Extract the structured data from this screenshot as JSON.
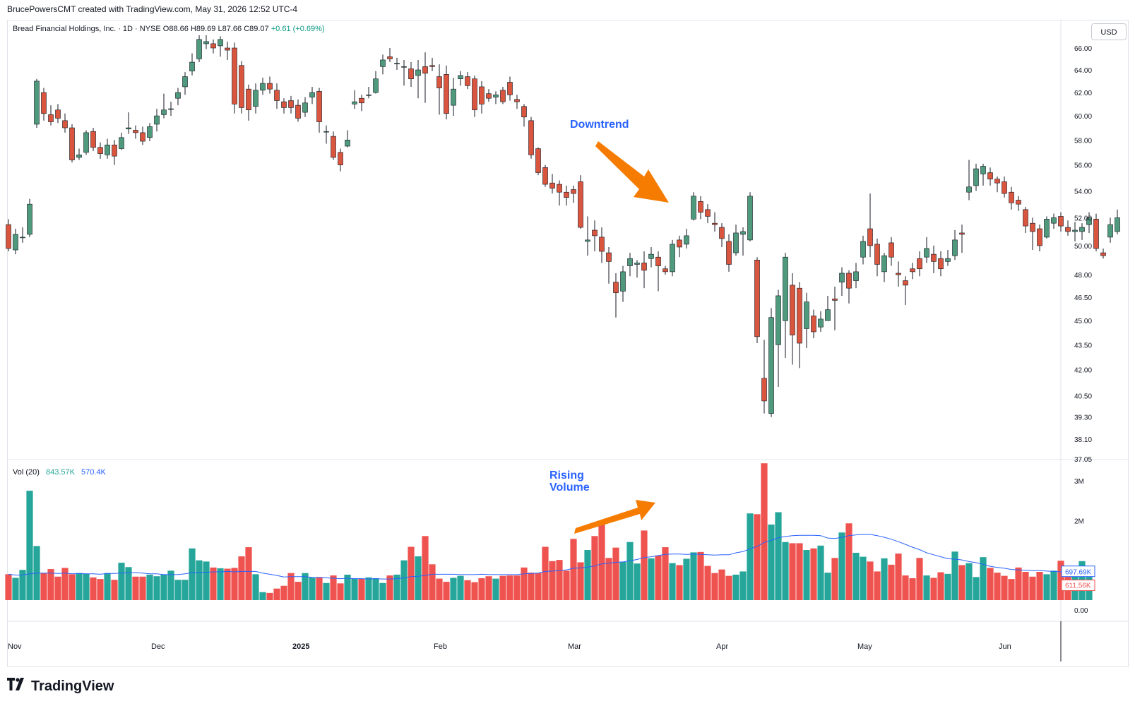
{
  "header": {
    "credit": "BrucePowersCMT created with TradingView.com, May 31, 2026 12:52 UTC-4",
    "currency": "USD"
  },
  "legend": {
    "symbol": "Bread Financial Holdings, Inc. · 1D · NYSE",
    "open": "O88.66",
    "high": "H89.69",
    "low": "L87.66",
    "close": "C89.07",
    "change": "+0.61 (+0.69%)"
  },
  "volume_legend": {
    "label": "Vol (20)",
    "value1": "843.57K",
    "value2": "570.4K"
  },
  "logo": {
    "text": "TradingView"
  },
  "colors": {
    "up": "#4f9a7c",
    "down": "#d9553e",
    "vol_up": "#26a69a",
    "vol_down": "#ef5350",
    "ma": "#2962ff",
    "annotation": "#f57c00",
    "annotation_text": "#2962ff"
  },
  "chart_data": {
    "type": "candlestick",
    "title": "",
    "price_ticks": [
      "66.00",
      "64.00",
      "62.00",
      "60.00",
      "58.00",
      "56.00",
      "54.00",
      "52.00",
      "50.00",
      "48.00",
      "46.50",
      "45.00",
      "43.50",
      "42.00",
      "40.50",
      "39.30",
      "38.10",
      "37.05"
    ],
    "price_tick_values": [
      66,
      64,
      62,
      60,
      58,
      56,
      54,
      52,
      50,
      48,
      46.5,
      45,
      43.5,
      42,
      40.5,
      39.3,
      38.1,
      37.05
    ],
    "ylim": [
      37.05,
      67.5
    ],
    "log_scale": true,
    "volume_ticks": [
      "3M",
      "2M",
      "0.00"
    ],
    "volume_tick_values": [
      3000000,
      2000000,
      0
    ],
    "volume_labels": {
      "ma": "697.69K",
      "last": "611.56K"
    },
    "volume_label_values": {
      "ma": 697690,
      "last": 611560
    },
    "x_labels": [
      "Nov",
      "Dec",
      "2025",
      "Feb",
      "Mar",
      "Apr",
      "May",
      "Jun"
    ],
    "x_label_index": [
      0,
      21,
      41,
      61,
      80,
      101,
      121,
      141
    ],
    "annotations": [
      "Downtrend",
      "Rising Volume"
    ],
    "candles": [
      [
        51.5,
        49.8,
        51.9,
        49.6
      ],
      [
        49.7,
        50.8,
        51.2,
        49.4
      ],
      [
        50.6,
        50.6,
        51.3,
        50.2
      ],
      [
        50.8,
        53.0,
        53.4,
        50.6
      ],
      [
        59.3,
        63.0,
        63.2,
        59.0
      ],
      [
        62.0,
        60.2,
        62.4,
        59.6
      ],
      [
        60.1,
        59.5,
        60.9,
        59.2
      ],
      [
        60.5,
        59.8,
        61.0,
        59.4
      ],
      [
        59.6,
        59.0,
        60.2,
        58.6
      ],
      [
        59.0,
        56.4,
        59.3,
        56.2
      ],
      [
        56.6,
        56.8,
        57.3,
        56.4
      ],
      [
        57.0,
        58.6,
        58.8,
        56.8
      ],
      [
        58.7,
        57.4,
        59.0,
        57.1
      ],
      [
        57.4,
        56.9,
        57.8,
        56.5
      ],
      [
        56.8,
        57.6,
        58.1,
        56.5
      ],
      [
        57.6,
        56.7,
        58.0,
        56.0
      ],
      [
        57.3,
        58.2,
        58.6,
        57.2
      ],
      [
        58.9,
        59.0,
        60.3,
        58.5
      ],
      [
        58.8,
        58.6,
        59.2,
        58.1
      ],
      [
        58.6,
        57.9,
        59.1,
        57.6
      ],
      [
        58.2,
        59.1,
        59.4,
        57.9
      ],
      [
        59.3,
        60.0,
        60.6,
        58.7
      ],
      [
        60.1,
        60.5,
        61.9,
        59.8
      ],
      [
        60.6,
        60.6,
        61.2,
        60.0
      ],
      [
        61.5,
        62.0,
        62.4,
        60.9
      ],
      [
        62.5,
        63.4,
        63.8,
        61.8
      ],
      [
        63.9,
        64.7,
        65.5,
        63.5
      ],
      [
        65.0,
        66.8,
        67.2,
        64.7
      ],
      [
        66.4,
        66.6,
        67.2,
        65.9
      ],
      [
        66.4,
        66.0,
        66.8,
        65.5
      ],
      [
        66.2,
        66.8,
        67.1,
        65.2
      ],
      [
        66.0,
        65.8,
        66.6,
        64.9
      ],
      [
        66.0,
        61.0,
        66.5,
        60.2
      ],
      [
        64.4,
        60.7,
        64.8,
        60.2
      ],
      [
        62.3,
        60.5,
        62.7,
        59.6
      ],
      [
        60.8,
        62.2,
        62.8,
        60.2
      ],
      [
        62.2,
        62.8,
        63.3,
        61.8
      ],
      [
        62.8,
        62.3,
        63.4,
        61.9
      ],
      [
        62.2,
        61.3,
        62.8,
        60.6
      ],
      [
        61.2,
        60.7,
        61.5,
        60.2
      ],
      [
        61.3,
        60.7,
        61.7,
        60.2
      ],
      [
        60.9,
        59.8,
        61.4,
        59.5
      ],
      [
        60.3,
        61.1,
        61.6,
        59.9
      ],
      [
        61.6,
        62.0,
        62.5,
        61.0
      ],
      [
        62.1,
        59.5,
        62.4,
        58.6
      ],
      [
        58.7,
        58.7,
        59.2,
        57.7
      ],
      [
        58.3,
        56.6,
        58.7,
        56.4
      ],
      [
        57.0,
        56.0,
        57.3,
        55.5
      ],
      [
        57.5,
        58.0,
        58.8,
        57.4
      ],
      [
        61.0,
        61.2,
        62.2,
        60.6
      ],
      [
        61.5,
        61.1,
        61.8,
        60.4
      ],
      [
        61.8,
        61.8,
        62.5,
        61.5
      ],
      [
        62.0,
        63.2,
        63.9,
        61.9
      ],
      [
        64.3,
        64.9,
        65.4,
        63.6
      ],
      [
        65.2,
        65.0,
        66.0,
        64.7
      ],
      [
        64.6,
        64.6,
        65.1,
        64.0
      ],
      [
        64.3,
        64.3,
        64.9,
        62.6
      ],
      [
        64.1,
        63.2,
        64.7,
        62.5
      ],
      [
        63.5,
        64.0,
        64.9,
        61.5
      ],
      [
        64.3,
        63.7,
        65.6,
        61.1
      ],
      [
        64.4,
        64.3,
        65.1,
        63.9
      ],
      [
        63.4,
        62.4,
        64.5,
        60.1
      ],
      [
        63.6,
        60.2,
        64.4,
        59.7
      ],
      [
        60.9,
        62.3,
        63.3,
        60.0
      ],
      [
        63.2,
        63.5,
        63.9,
        62.6
      ],
      [
        63.4,
        62.6,
        63.8,
        62.3
      ],
      [
        63.2,
        60.5,
        63.5,
        59.9
      ],
      [
        62.5,
        61.0,
        63.0,
        60.2
      ],
      [
        61.9,
        61.5,
        62.3,
        61.2
      ],
      [
        61.6,
        61.8,
        62.1,
        61.0
      ],
      [
        62.2,
        61.2,
        62.5,
        61.0
      ],
      [
        62.9,
        61.8,
        63.4,
        61.3
      ],
      [
        61.4,
        61.2,
        61.8,
        60.6
      ],
      [
        60.8,
        59.9,
        61.0,
        59.1
      ],
      [
        59.6,
        56.8,
        59.9,
        56.5
      ],
      [
        57.3,
        55.4,
        57.4,
        55.2
      ],
      [
        55.8,
        54.5,
        56.0,
        54.3
      ],
      [
        54.6,
        54.2,
        55.3,
        53.8
      ],
      [
        54.5,
        53.9,
        54.8,
        52.9
      ],
      [
        53.9,
        53.5,
        54.4,
        52.9
      ],
      [
        54.1,
        53.8,
        54.4,
        53.1
      ],
      [
        54.7,
        51.3,
        55.2,
        51.2
      ],
      [
        50.3,
        50.4,
        52.1,
        49.3
      ],
      [
        51.1,
        50.7,
        51.8,
        49.6
      ],
      [
        50.6,
        49.6,
        51.3,
        48.8
      ],
      [
        49.5,
        48.9,
        49.9,
        47.4
      ],
      [
        47.5,
        46.8,
        48.1,
        45.2
      ],
      [
        46.9,
        48.2,
        48.6,
        46.2
      ],
      [
        48.6,
        49.1,
        49.5,
        47.9
      ],
      [
        48.7,
        48.8,
        49.0,
        47.8
      ],
      [
        48.8,
        48.3,
        49.6,
        47.1
      ],
      [
        49.1,
        49.4,
        49.9,
        48.5
      ],
      [
        49.2,
        48.6,
        49.6,
        46.9
      ],
      [
        48.4,
        48.2,
        48.6,
        48.0
      ],
      [
        48.2,
        50.1,
        50.4,
        47.9
      ],
      [
        50.4,
        49.9,
        50.7,
        49.2
      ],
      [
        50.1,
        50.7,
        51.2,
        49.8
      ],
      [
        51.9,
        53.6,
        53.9,
        51.8
      ],
      [
        53.2,
        52.4,
        53.6,
        51.9
      ],
      [
        52.6,
        52.1,
        53.0,
        51.6
      ],
      [
        51.6,
        51.5,
        52.4,
        51.0
      ],
      [
        51.3,
        50.5,
        51.6,
        49.9
      ],
      [
        50.3,
        48.7,
        50.8,
        48.2
      ],
      [
        49.5,
        50.9,
        51.5,
        49.3
      ],
      [
        50.8,
        51.0,
        51.3,
        49.3
      ],
      [
        50.4,
        53.6,
        53.9,
        50.3
      ],
      [
        49.0,
        44.0,
        49.2,
        43.6
      ],
      [
        41.5,
        40.2,
        43.8,
        39.5
      ],
      [
        39.5,
        45.2,
        45.8,
        39.3
      ],
      [
        43.5,
        46.6,
        47.0,
        41.0
      ],
      [
        45.0,
        49.2,
        49.5,
        42.7
      ],
      [
        47.3,
        44.1,
        48.1,
        42.3
      ],
      [
        47.1,
        43.6,
        47.5,
        42.1
      ],
      [
        44.5,
        46.2,
        46.8,
        43.3
      ],
      [
        45.3,
        44.3,
        45.7,
        43.9
      ],
      [
        44.6,
        45.1,
        45.6,
        44.3
      ],
      [
        45.0,
        45.7,
        46.6,
        45.0
      ],
      [
        46.4,
        46.3,
        47.2,
        44.4
      ],
      [
        47.5,
        48.1,
        48.5,
        46.6
      ],
      [
        48.1,
        47.1,
        48.3,
        46.1
      ],
      [
        47.6,
        48.2,
        48.8,
        47.1
      ],
      [
        49.2,
        50.3,
        50.7,
        48.7
      ],
      [
        51.2,
        50.0,
        53.8,
        49.2
      ],
      [
        50.1,
        48.7,
        50.5,
        47.9
      ],
      [
        48.2,
        49.3,
        49.5,
        47.5
      ],
      [
        50.2,
        49.2,
        50.6,
        48.6
      ],
      [
        48.1,
        48.0,
        48.9,
        47.2
      ],
      [
        47.6,
        47.3,
        47.9,
        46.0
      ],
      [
        48.4,
        48.2,
        48.8,
        47.7
      ],
      [
        49.1,
        48.4,
        49.6,
        47.9
      ],
      [
        49.2,
        49.8,
        50.6,
        48.8
      ],
      [
        49.4,
        48.9,
        50.0,
        48.1
      ],
      [
        49.1,
        48.4,
        49.6,
        47.9
      ],
      [
        48.9,
        49.1,
        49.7,
        48.6
      ],
      [
        49.3,
        50.4,
        51.1,
        49.0
      ],
      [
        50.9,
        50.8,
        51.5,
        49.5
      ],
      [
        53.9,
        54.3,
        56.4,
        53.3
      ],
      [
        54.4,
        55.7,
        56.1,
        54.0
      ],
      [
        55.3,
        55.9,
        56.1,
        54.4
      ],
      [
        55.4,
        54.9,
        55.8,
        54.4
      ],
      [
        54.9,
        54.6,
        55.1,
        53.9
      ],
      [
        54.7,
        53.8,
        55.1,
        53.5
      ],
      [
        53.9,
        53.1,
        54.3,
        52.6
      ],
      [
        53.3,
        53.0,
        53.6,
        52.5
      ],
      [
        52.6,
        51.4,
        52.8,
        50.9
      ],
      [
        51.6,
        51.0,
        52.0,
        49.7
      ],
      [
        51.2,
        50.0,
        51.5,
        49.6
      ],
      [
        50.6,
        51.9,
        52.1,
        50.5
      ],
      [
        51.6,
        52.0,
        52.3,
        51.2
      ],
      [
        52.1,
        51.4,
        52.4,
        51.0
      ],
      [
        51.3,
        51.0,
        51.8,
        50.7
      ],
      [
        51.0,
        51.1,
        51.7,
        50.3
      ],
      [
        51.0,
        51.3,
        51.6,
        50.4
      ],
      [
        51.5,
        52.0,
        52.4,
        50.9
      ],
      [
        51.9,
        49.8,
        52.3,
        49.6
      ],
      [
        49.5,
        49.3,
        49.8,
        49.1
      ],
      [
        50.6,
        51.5,
        52.0,
        50.2
      ],
      [
        51.0,
        52.0,
        52.6,
        50.8
      ]
    ],
    "volume": [
      650,
      560,
      760,
      2750,
      1360,
      680,
      780,
      590,
      810,
      650,
      680,
      660,
      570,
      530,
      680,
      510,
      940,
      830,
      590,
      590,
      640,
      600,
      640,
      740,
      510,
      510,
      1300,
      1000,
      970,
      820,
      800,
      790,
      810,
      1100,
      1330,
      650,
      200,
      180,
      290,
      360,
      680,
      460,
      680,
      570,
      580,
      430,
      620,
      420,
      640,
      540,
      540,
      570,
      550,
      430,
      620,
      640,
      1000,
      1340,
      1100,
      1610,
      900,
      540,
      460,
      560,
      610,
      500,
      450,
      550,
      600,
      540,
      610,
      620,
      620,
      820,
      690,
      680,
      1340,
      980,
      1010,
      740,
      1540,
      950,
      1260,
      1610,
      1940,
      1060,
      1320,
      960,
      1460,
      920,
      1750,
      1050,
      1120,
      1330,
      930,
      880,
      1040,
      1200,
      1210,
      860,
      680,
      770,
      610,
      640,
      720,
      2180,
      2160,
      3440,
      1900,
      2210,
      1460,
      1430,
      1430,
      1260,
      1300,
      1370,
      690,
      1060,
      1700,
      1930,
      1190,
      1090,
      970,
      720,
      1050,
      890,
      1170,
      620,
      550,
      1060,
      620,
      560,
      700,
      660,
      1220,
      880,
      930,
      580,
      1080,
      810,
      690,
      610,
      530,
      820,
      710,
      590,
      710,
      650,
      740,
      990,
      680,
      730,
      980,
      610
    ],
    "volume_ma": [
      650,
      630,
      630,
      660,
      680,
      680,
      680,
      670,
      680,
      660,
      670,
      660,
      660,
      650,
      670,
      670,
      680,
      690,
      690,
      680,
      660,
      660,
      640,
      640,
      640,
      660,
      690,
      700,
      700,
      710,
      710,
      720,
      710,
      720,
      720,
      720,
      680,
      650,
      620,
      580,
      590,
      590,
      590,
      570,
      560,
      560,
      550,
      540,
      550,
      540,
      540,
      530,
      540,
      530,
      530,
      540,
      560,
      590,
      600,
      620,
      650,
      650,
      650,
      650,
      640,
      640,
      640,
      650,
      640,
      640,
      640,
      640,
      640,
      660,
      670,
      680,
      720,
      730,
      740,
      760,
      800,
      810,
      830,
      860,
      910,
      930,
      950,
      960,
      990,
      1020,
      1070,
      1090,
      1120,
      1150,
      1160,
      1160,
      1150,
      1160,
      1150,
      1140,
      1130,
      1140,
      1140,
      1190,
      1220,
      1290,
      1350,
      1450,
      1500,
      1570,
      1600,
      1620,
      1630,
      1630,
      1630,
      1620,
      1560,
      1550,
      1580,
      1620,
      1640,
      1650,
      1650,
      1620,
      1580,
      1530,
      1470,
      1400,
      1330,
      1270,
      1190,
      1140,
      1090,
      1040,
      1030,
      1010,
      970,
      940,
      900,
      850,
      820,
      800,
      770,
      760,
      750,
      740,
      740,
      730,
      720,
      710,
      700,
      700,
      700,
      698
    ]
  }
}
